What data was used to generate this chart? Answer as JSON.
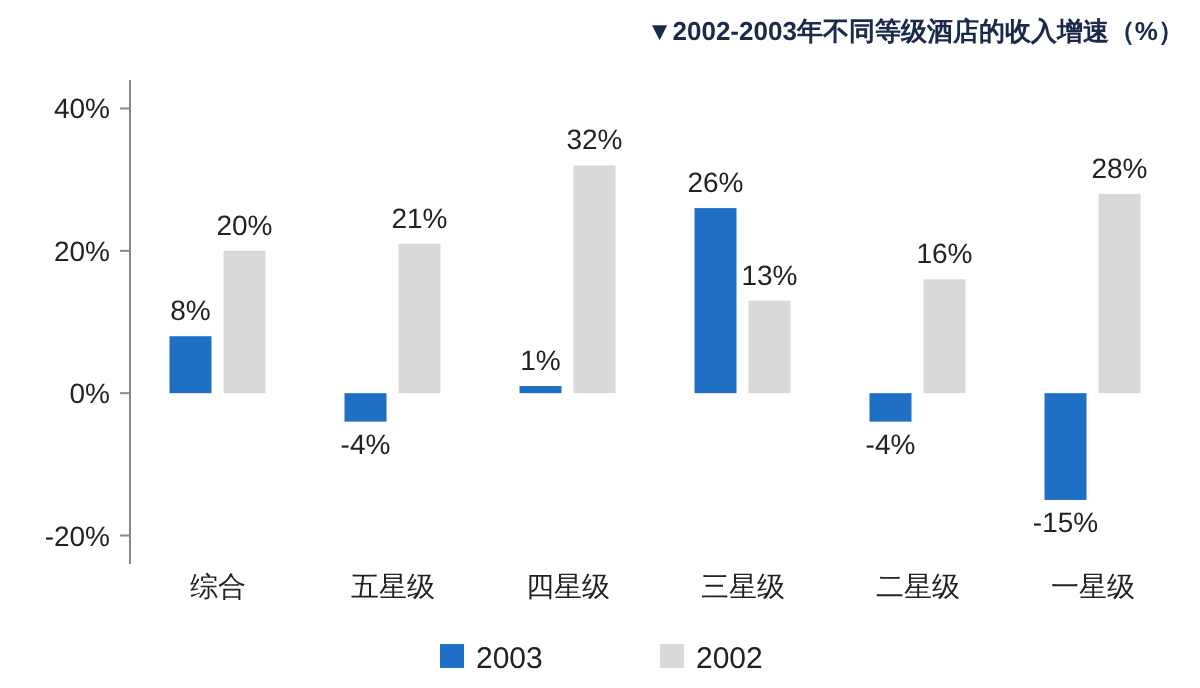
{
  "chart_data": {
    "type": "bar",
    "title": "▼2002-2003年不同等级酒店的收入增速（%）",
    "categories": [
      "综合",
      "五星级",
      "四星级",
      "三星级",
      "二星级",
      "一星级"
    ],
    "series": [
      {
        "name": "2003",
        "color": "#1f6fc4",
        "values": [
          8,
          -4,
          1,
          26,
          -4,
          -15
        ],
        "value_labels": [
          "8%",
          "-4%",
          "1%",
          "26%",
          "-4%",
          "-15%"
        ]
      },
      {
        "name": "2002",
        "color": "#d9d9d9",
        "values": [
          20,
          21,
          32,
          13,
          16,
          28
        ],
        "value_labels": [
          "20%",
          "21%",
          "32%",
          "13%",
          "16%",
          "28%"
        ]
      }
    ],
    "ylim": [
      -24,
      44
    ],
    "yticks": [
      {
        "value": -20,
        "label": "-20%"
      },
      {
        "value": 0,
        "label": "0%"
      },
      {
        "value": 20,
        "label": "20%"
      },
      {
        "value": 40,
        "label": "40%"
      }
    ],
    "grid": false,
    "legend": "bottom"
  }
}
